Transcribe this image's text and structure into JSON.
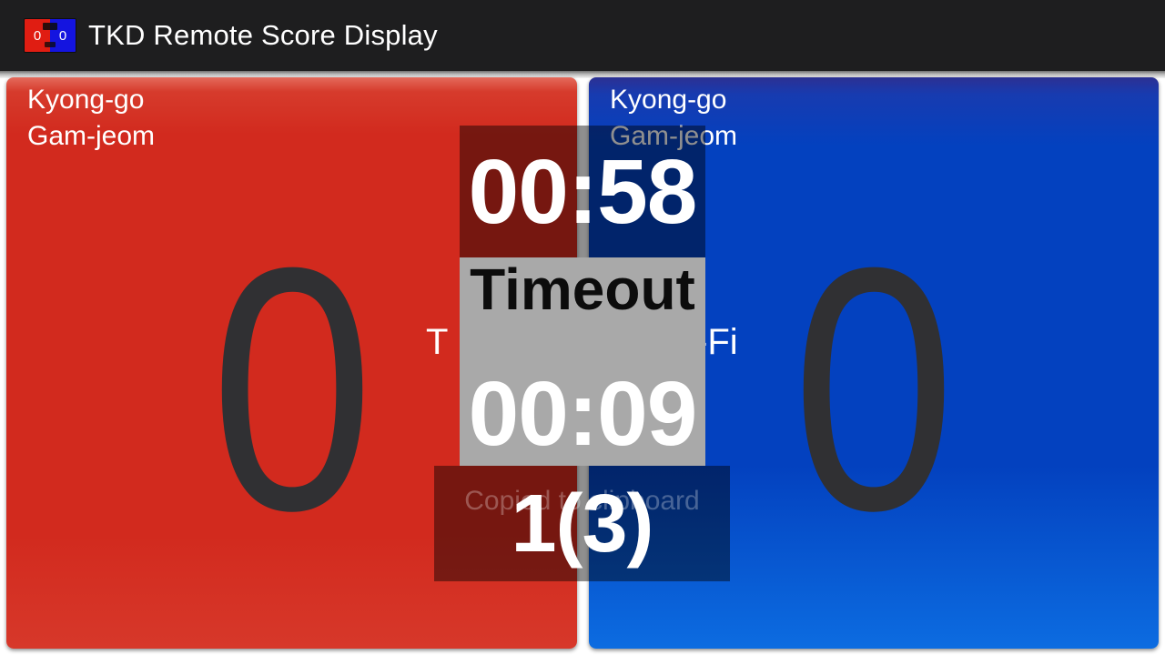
{
  "header": {
    "title": "TKD Remote Score Display",
    "app_icon": {
      "left_score": "0",
      "right_score": "0"
    }
  },
  "red_corner": {
    "labels": {
      "kyong_go": "Kyong-go",
      "gam_jeom": "Gam-jeom"
    },
    "score": "0"
  },
  "blue_corner": {
    "labels": {
      "kyong_go": "Kyong-go",
      "gam_jeom": "Gam-jeom"
    },
    "score": "0"
  },
  "overlay": {
    "match_timer": "00:58",
    "timeout_label": "Timeout",
    "timeout_timer": "00:09",
    "round": "1(3)",
    "fading_toast": "Copied to clipboard",
    "obscured_toast_fragment_left": "T",
    "obscured_toast_fragment_right": "-Fi"
  },
  "colors": {
    "title_bar": "#1e1e1f",
    "red_panel": "#d22a1e",
    "blue_panel": "#0341bf",
    "score_text": "#303033",
    "overlay_scrim": "rgba(0,0,0,0.44)",
    "timeout_box": "#a9a9a9"
  }
}
